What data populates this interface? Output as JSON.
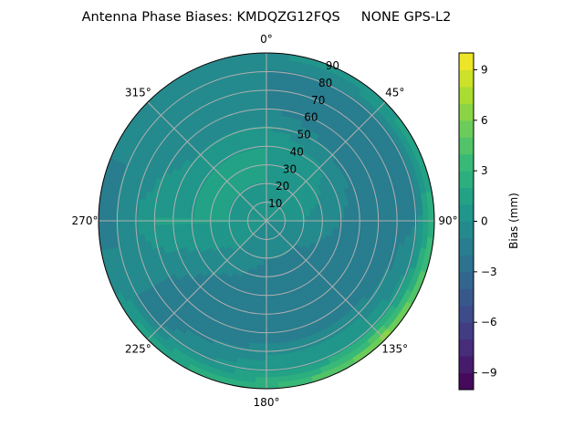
{
  "chart_data": {
    "type": "heatmap",
    "subtype": "polar-contour",
    "title": "Antenna Phase Biases: KMDQZG12FQS     NONE GPS-L2",
    "angle_tick_labels": [
      "0°",
      "45°",
      "90°",
      "135°",
      "180°",
      "225°",
      "270°",
      "315°"
    ],
    "radial_tick_labels": [
      "10",
      "20",
      "30",
      "40",
      "50",
      "60",
      "70",
      "80",
      "90"
    ],
    "radial_range": [
      0,
      90
    ],
    "grid": true,
    "colorbar": {
      "label": "Bias (mm)",
      "range": [
        -10,
        10
      ],
      "level_step": 1,
      "tick_labels": [
        "9",
        "6",
        "3",
        "0",
        "−3",
        "−6",
        "−9"
      ],
      "colormap": "viridis"
    },
    "field": {
      "azimuths": [
        0,
        45,
        90,
        135,
        180,
        225,
        270,
        315
      ],
      "zenith_angles": [
        0,
        20,
        40,
        60,
        80,
        90
      ],
      "values": [
        [
          0,
          0,
          0,
          0,
          0,
          0,
          0,
          0
        ],
        [
          1,
          1,
          0,
          -1,
          -1,
          0,
          1,
          1
        ],
        [
          1,
          0,
          -1,
          -2,
          -2,
          -1,
          1,
          1
        ],
        [
          -1,
          -2,
          -2,
          -2,
          -2,
          -2,
          1,
          -1
        ],
        [
          -1,
          -1,
          -1,
          1,
          1,
          -1,
          -1,
          -1
        ],
        [
          0,
          1,
          3,
          7,
          3,
          2,
          -2,
          0
        ]
      ]
    }
  }
}
